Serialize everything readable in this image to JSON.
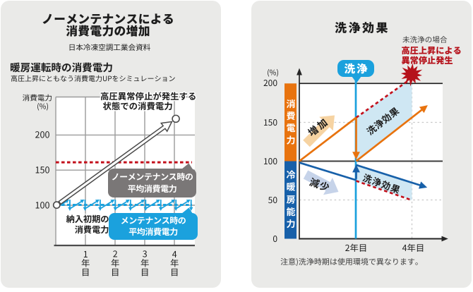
{
  "page": {
    "background": "#ffffff",
    "panel_background": "#eaeae8"
  },
  "colors": {
    "accent_blue": "#1ba1dd",
    "dark_blue": "#1760a9",
    "orange": "#e8730e",
    "red": "#c3101b",
    "dark_red": "#b5121b",
    "badge_gray": "#7a7777",
    "shade_blue": "#cfe7f3",
    "arrow_tan": "#f6d3a2",
    "arrow_bluegray": "#c6d3e9",
    "text": "#1d1d1d"
  },
  "left_panel": {
    "title_line1": "ノーメンテナンスによる",
    "title_line2": "消費電力の増加",
    "source": "日本冷凍空調工業会資料",
    "section_title": "暖房運転時の消費電力",
    "section_subtitle": "高圧上昇にともなう消費電力UPをシミュレーション",
    "y_axis_label": "消費電力",
    "y_axis_unit": "(%)",
    "y_ticks": [
      "200",
      "150",
      "100"
    ],
    "x_ticks": [
      "1年目",
      "2年目",
      "3年目",
      "4年目"
    ],
    "annotation_line1": "高圧異常停止が発生する",
    "annotation_line2": "状態での消費電力",
    "initial_label_line1": "納入初期の",
    "initial_label_line2": "消費電力",
    "gray_badge_line1": "ノーメンテナンス時の",
    "gray_badge_line2": "平均消費電力",
    "blue_badge_line1": "メンテナンス時の",
    "blue_badge_line2": "平均消費電力"
  },
  "right_panel": {
    "title": "洗浄効果",
    "unwashed_caption": "未洗浄の場合",
    "unwashed_alert_line1": "高圧上昇による",
    "unwashed_alert_line2": "異常停止発生",
    "wash_badge": "洗浄",
    "y_axis_unit": "(%)",
    "y_ticks": [
      "200",
      "150",
      "100",
      "50",
      "0"
    ],
    "x_ticks": [
      "2年目",
      "4年目"
    ],
    "consumption_bar_label": "消費電力",
    "capability_bar_label": "冷暖房能力",
    "increase_label": "増加",
    "decrease_label": "減少",
    "effect_label_upper": "洗浄効果",
    "effect_label_lower": "洗浄効果",
    "note": "注意)洗浄時期は使用環境で異なります。"
  },
  "chart_data": [
    {
      "type": "line",
      "title": "暖房運転時の消費電力(ノーメンテナンスによる消費電力の増加)",
      "xlabel": "年目",
      "ylabel": "消費電力(%)",
      "xlim": [
        0,
        4.7
      ],
      "ylim": [
        43,
        254
      ],
      "yticks": [
        100,
        150,
        200
      ],
      "xticks": [
        1,
        2,
        3,
        4
      ],
      "grid": true,
      "series": [
        {
          "name": "ノーメンテナンス時の消費電力",
          "style": "outline_arrow",
          "points": [
            [
              0.03,
              100.3
            ],
            [
              4.05,
              223
            ]
          ]
        },
        {
          "name": "メンテナンス時の消費電力(サイクル)",
          "style": "sawtooth",
          "min": 95,
          "max": 108.5,
          "teeth": 9,
          "x_start": 0.0,
          "x_end": 4.6
        },
        {
          "name": "ノーメンテナンス時の平均消費電力",
          "style": "dashed_red",
          "value": 161
        },
        {
          "name": "メンテナンス時の平均消費電力",
          "style": "dashed_blue",
          "value": 100.5
        }
      ]
    },
    {
      "type": "line",
      "title": "洗浄効果",
      "xlabel": "年目",
      "ylabel": "(%)",
      "xlim": [
        0,
        5.2
      ],
      "ylim": [
        0,
        200
      ],
      "yticks": [
        0,
        50,
        100,
        150,
        200
      ],
      "xticks": [
        2,
        4
      ],
      "wash_at_year": 2,
      "series": [
        {
          "name": "消費電力(洗浄前)",
          "style": "orange",
          "points": [
            [
              0,
              100
            ],
            [
              2,
              156
            ]
          ]
        },
        {
          "name": "未洗浄の場合の消費電力",
          "style": "dashed_red",
          "points": [
            [
              2,
              156
            ],
            [
              3.85,
              204
            ]
          ]
        },
        {
          "name": "洗浄による消費電力低下",
          "style": "orange_arrow",
          "points": [
            [
              2,
              156
            ],
            [
              2,
              102
            ]
          ]
        },
        {
          "name": "消費電力(洗浄後)",
          "style": "orange_arrow",
          "points": [
            [
              2,
              100
            ],
            [
              4.52,
              172
            ]
          ]
        },
        {
          "name": "冷暖房能力(洗浄前)",
          "style": "blue",
          "points": [
            [
              0,
              98
            ],
            [
              2,
              75.5
            ]
          ]
        },
        {
          "name": "洗浄による冷暖房能力回復",
          "style": "blue_arrow",
          "points": [
            [
              2,
              77
            ],
            [
              2,
              95.5
            ]
          ]
        },
        {
          "name": "冷暖房能力(洗浄後)",
          "style": "blue_arrow",
          "points": [
            [
              2,
              95
            ],
            [
              4.5,
              66
            ]
          ]
        },
        {
          "name": "未洗浄の場合の冷暖房能力",
          "style": "dashed_red",
          "points": [
            [
              2,
              74.5
            ],
            [
              3.93,
              50
            ]
          ]
        }
      ]
    }
  ]
}
